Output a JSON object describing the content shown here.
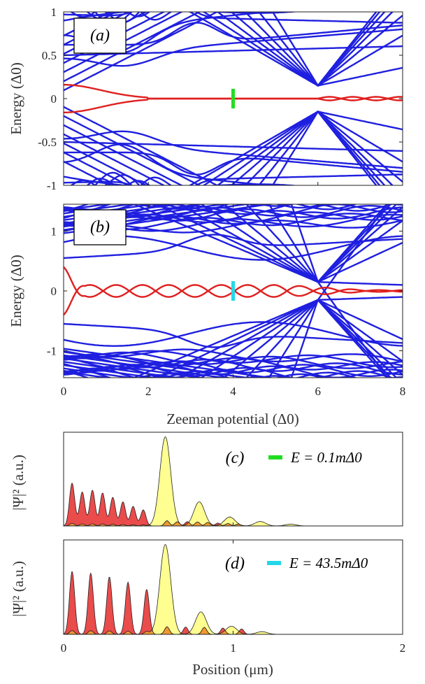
{
  "chart_data": [
    {
      "panel": "a",
      "type": "line",
      "label": "(a)",
      "ylabel": "Energy (Δ0)",
      "xlim": [
        0,
        8
      ],
      "ylim": [
        -1,
        1
      ],
      "yticks": [
        "1",
        "0.5",
        "0",
        "-0.5",
        "-1"
      ],
      "ytick_values": [
        1,
        0.5,
        0,
        -0.5,
        -1
      ],
      "colors": {
        "bulk": "#1f1fe0",
        "zero_mode": "#e01f1f",
        "marker": "#22dd22"
      },
      "bulk_levels_at_zero": [
        0.9,
        0.48,
        -0.48,
        -0.9
      ],
      "gap_closing_x": 6.0,
      "zero_mode": {
        "start_energy": 0.16,
        "merge_x": 2.0,
        "osc_amplitude_after_6": 0.02
      },
      "marker": {
        "x": 4.0,
        "y": 0
      }
    },
    {
      "panel": "b",
      "type": "line",
      "label": "(b)",
      "ylabel": "Energy (Δ0)",
      "xlabel": "Zeeman potential (Δ0)",
      "xlim": [
        0,
        8
      ],
      "ylim": [
        -1.45,
        1.45
      ],
      "xticks": [
        "0",
        "2",
        "4",
        "6",
        "8"
      ],
      "xtick_values": [
        0,
        2,
        4,
        6,
        8
      ],
      "yticks": [
        "1",
        "0",
        "-1"
      ],
      "ytick_values": [
        1,
        0,
        -1
      ],
      "colors": {
        "bulk": "#1f1fe0",
        "zero_mode": "#e01f1f",
        "marker": "#22d8e8"
      },
      "gap_closing_x": 6.0,
      "zero_mode": {
        "start_energy": 0.4,
        "osc_amplitude": 0.1,
        "crossings_x": [
          0.5,
          1.3,
          2.0,
          2.6,
          3.2,
          3.8,
          4.4,
          5.0
        ]
      },
      "marker": {
        "x": 4.0,
        "y": 0
      }
    },
    {
      "panel": "c",
      "type": "area",
      "label": "(c)",
      "ylabel": "|Ψ|² (a.u.)",
      "xlim": [
        0,
        2
      ],
      "legend": {
        "text": "E = 0.1mΔ0",
        "color": "#22dd22"
      },
      "series": [
        {
          "color": "#e83c3c",
          "peaks_x": [
            0.05,
            0.11,
            0.17,
            0.23,
            0.29,
            0.35,
            0.41,
            0.47
          ],
          "peak_heights": [
            0.48,
            0.38,
            0.4,
            0.37,
            0.32,
            0.27,
            0.22,
            0.18
          ]
        },
        {
          "color": "#ffff88",
          "peaks_x": [
            0.6,
            0.8,
            0.98,
            1.16,
            1.34
          ],
          "peak_heights": [
            1.0,
            0.27,
            0.1,
            0.05,
            0.02
          ]
        }
      ]
    },
    {
      "panel": "d",
      "type": "area",
      "label": "(d)",
      "ylabel": "|Ψ|² (a.u.)",
      "xlabel": "Position (μm)",
      "xlim": [
        0,
        2
      ],
      "xticks": [
        "0",
        "1",
        "2"
      ],
      "xtick_values": [
        0,
        1,
        2
      ],
      "legend": {
        "text": "E = 43.5mΔ0",
        "color": "#22d8e8"
      },
      "series": [
        {
          "color": "#e83c3c",
          "peaks_x": [
            0.05,
            0.16,
            0.27,
            0.38,
            0.49
          ],
          "peak_heights": [
            0.7,
            0.68,
            0.64,
            0.58,
            0.5
          ]
        },
        {
          "color": "#ffff88",
          "peaks_x": [
            0.6,
            0.81,
            0.99,
            1.17
          ],
          "peak_heights": [
            1.0,
            0.25,
            0.09,
            0.03
          ]
        }
      ]
    }
  ]
}
